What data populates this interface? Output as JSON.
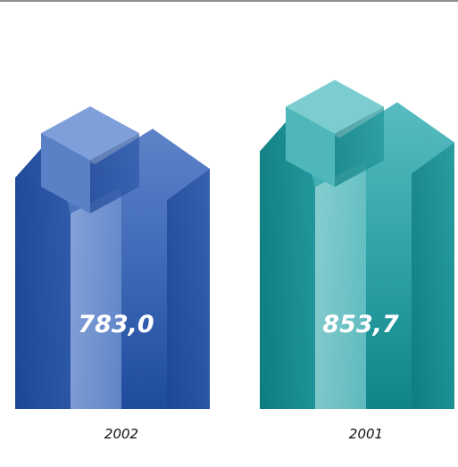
{
  "chart_data": {
    "type": "bar",
    "categories": [
      "2002",
      "2001"
    ],
    "values": [
      783.0,
      853.7
    ],
    "value_labels": [
      "783,0",
      "853,7"
    ],
    "bar_colors": [
      "#2b55a4",
      "#1a9396"
    ],
    "grid": false,
    "legend": "none"
  }
}
